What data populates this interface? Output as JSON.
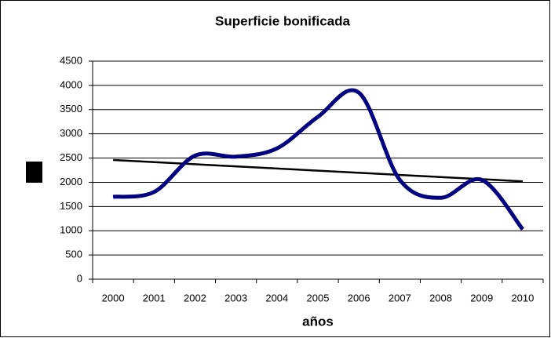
{
  "chart_data": {
    "type": "line",
    "title": "Superficie bonificada",
    "x_label": "años",
    "categories": [
      "2000",
      "2001",
      "2002",
      "2003",
      "2004",
      "2005",
      "2006",
      "2007",
      "2008",
      "2009",
      "2010"
    ],
    "series": [
      {
        "color": "#000080",
        "values": [
          1700,
          1800,
          2550,
          2530,
          2700,
          3350,
          3850,
          2050,
          1680,
          2050,
          1030
        ]
      }
    ],
    "trendline": {
      "start": 2460,
      "end": 2020,
      "color": "#000000"
    },
    "ylim": [
      0,
      4500
    ],
    "yticks": [
      0,
      500,
      1000,
      1500,
      2000,
      2500,
      3000,
      3500,
      4000,
      4500
    ],
    "grid": true
  }
}
